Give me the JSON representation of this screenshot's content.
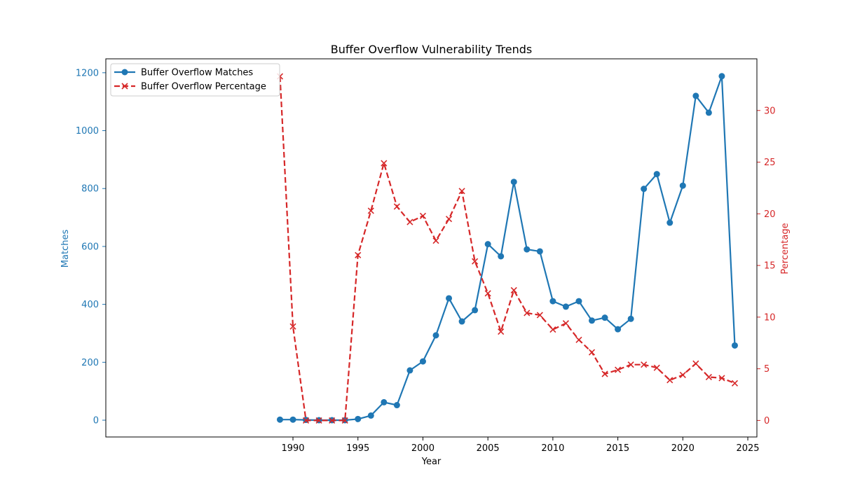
{
  "chart_data": {
    "type": "line",
    "title": "Buffer Overflow Vulnerability Trends",
    "xlabel": "Year",
    "ylabel_left": "Matches",
    "ylabel_right": "Percentage",
    "xlim": [
      1975.6,
      2025.7
    ],
    "ylim_left": [
      -58,
      1248
    ],
    "ylim_right": [
      -1.6,
      35
    ],
    "x_ticks": [
      1990,
      1995,
      2000,
      2005,
      2010,
      2015,
      2020,
      2025
    ],
    "y_left_ticks": [
      0,
      200,
      400,
      600,
      800,
      1000,
      1200
    ],
    "y_right_ticks": [
      0,
      5,
      10,
      15,
      20,
      25,
      30
    ],
    "legend_position": "top-left",
    "grid": false,
    "x": [
      1989,
      1990,
      1991,
      1992,
      1993,
      1994,
      1995,
      1996,
      1997,
      1998,
      1999,
      2000,
      2001,
      2002,
      2003,
      2004,
      2005,
      2006,
      2007,
      2008,
      2009,
      2010,
      2011,
      2012,
      2013,
      2014,
      2015,
      2016,
      2017,
      2018,
      2019,
      2020,
      2021,
      2022,
      2023,
      2024
    ],
    "series": [
      {
        "name": "Buffer Overflow Matches",
        "axis": "left",
        "color": "#1f77b4",
        "style": "solid",
        "marker": "circle",
        "values": [
          2,
          2,
          1,
          0,
          0,
          0,
          4,
          16,
          62,
          52,
          172,
          203,
          293,
          421,
          341,
          380,
          608,
          566,
          823,
          590,
          583,
          411,
          392,
          411,
          344,
          354,
          314,
          350,
          799,
          850,
          682,
          810,
          1120,
          1062,
          1188,
          258
        ]
      },
      {
        "name": "Buffer Overflow Percentage",
        "axis": "right",
        "color": "#d62728",
        "style": "dashed",
        "marker": "x",
        "values": [
          33.3,
          9.1,
          0,
          0,
          0,
          0,
          16.0,
          20.3,
          24.9,
          20.7,
          19.2,
          19.8,
          17.4,
          19.5,
          22.2,
          15.4,
          12.3,
          8.6,
          12.6,
          10.4,
          10.2,
          8.8,
          9.4,
          7.8,
          6.6,
          4.5,
          4.9,
          5.4,
          5.4,
          5.1,
          3.9,
          4.4,
          5.5,
          4.2,
          4.1,
          3.6
        ]
      }
    ]
  }
}
